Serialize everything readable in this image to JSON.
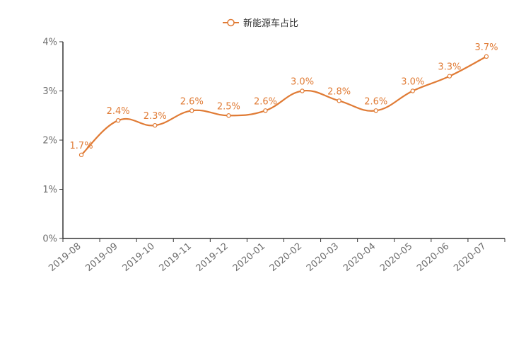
{
  "chart_data": {
    "type": "line",
    "title": "",
    "xlabel": "",
    "ylabel": "",
    "categories": [
      "2019-08",
      "2019-09",
      "2019-10",
      "2019-11",
      "2019-12",
      "2020-01",
      "2020-02",
      "2020-03",
      "2020-04",
      "2020-05",
      "2020-06",
      "2020-07"
    ],
    "series": [
      {
        "name": "新能源车占比",
        "values": [
          1.7,
          2.4,
          2.3,
          2.6,
          2.5,
          2.6,
          3.0,
          2.8,
          2.6,
          3.0,
          3.3,
          3.7
        ],
        "labels": [
          "1.7%",
          "2.4%",
          "2.3%",
          "2.6%",
          "2.5%",
          "2.6%",
          "3.0%",
          "2.8%",
          "2.6%",
          "3.0%",
          "3.3%",
          "3.7%"
        ],
        "color": "#e07b35",
        "smooth": true
      }
    ],
    "ylim": [
      0,
      4
    ],
    "yticks": [
      0,
      1,
      2,
      3,
      4
    ],
    "ytick_labels": [
      "0%",
      "1%",
      "2%",
      "3%",
      "4%"
    ],
    "grid": false,
    "legend_position": "top-center",
    "axis_color": "#333333"
  }
}
